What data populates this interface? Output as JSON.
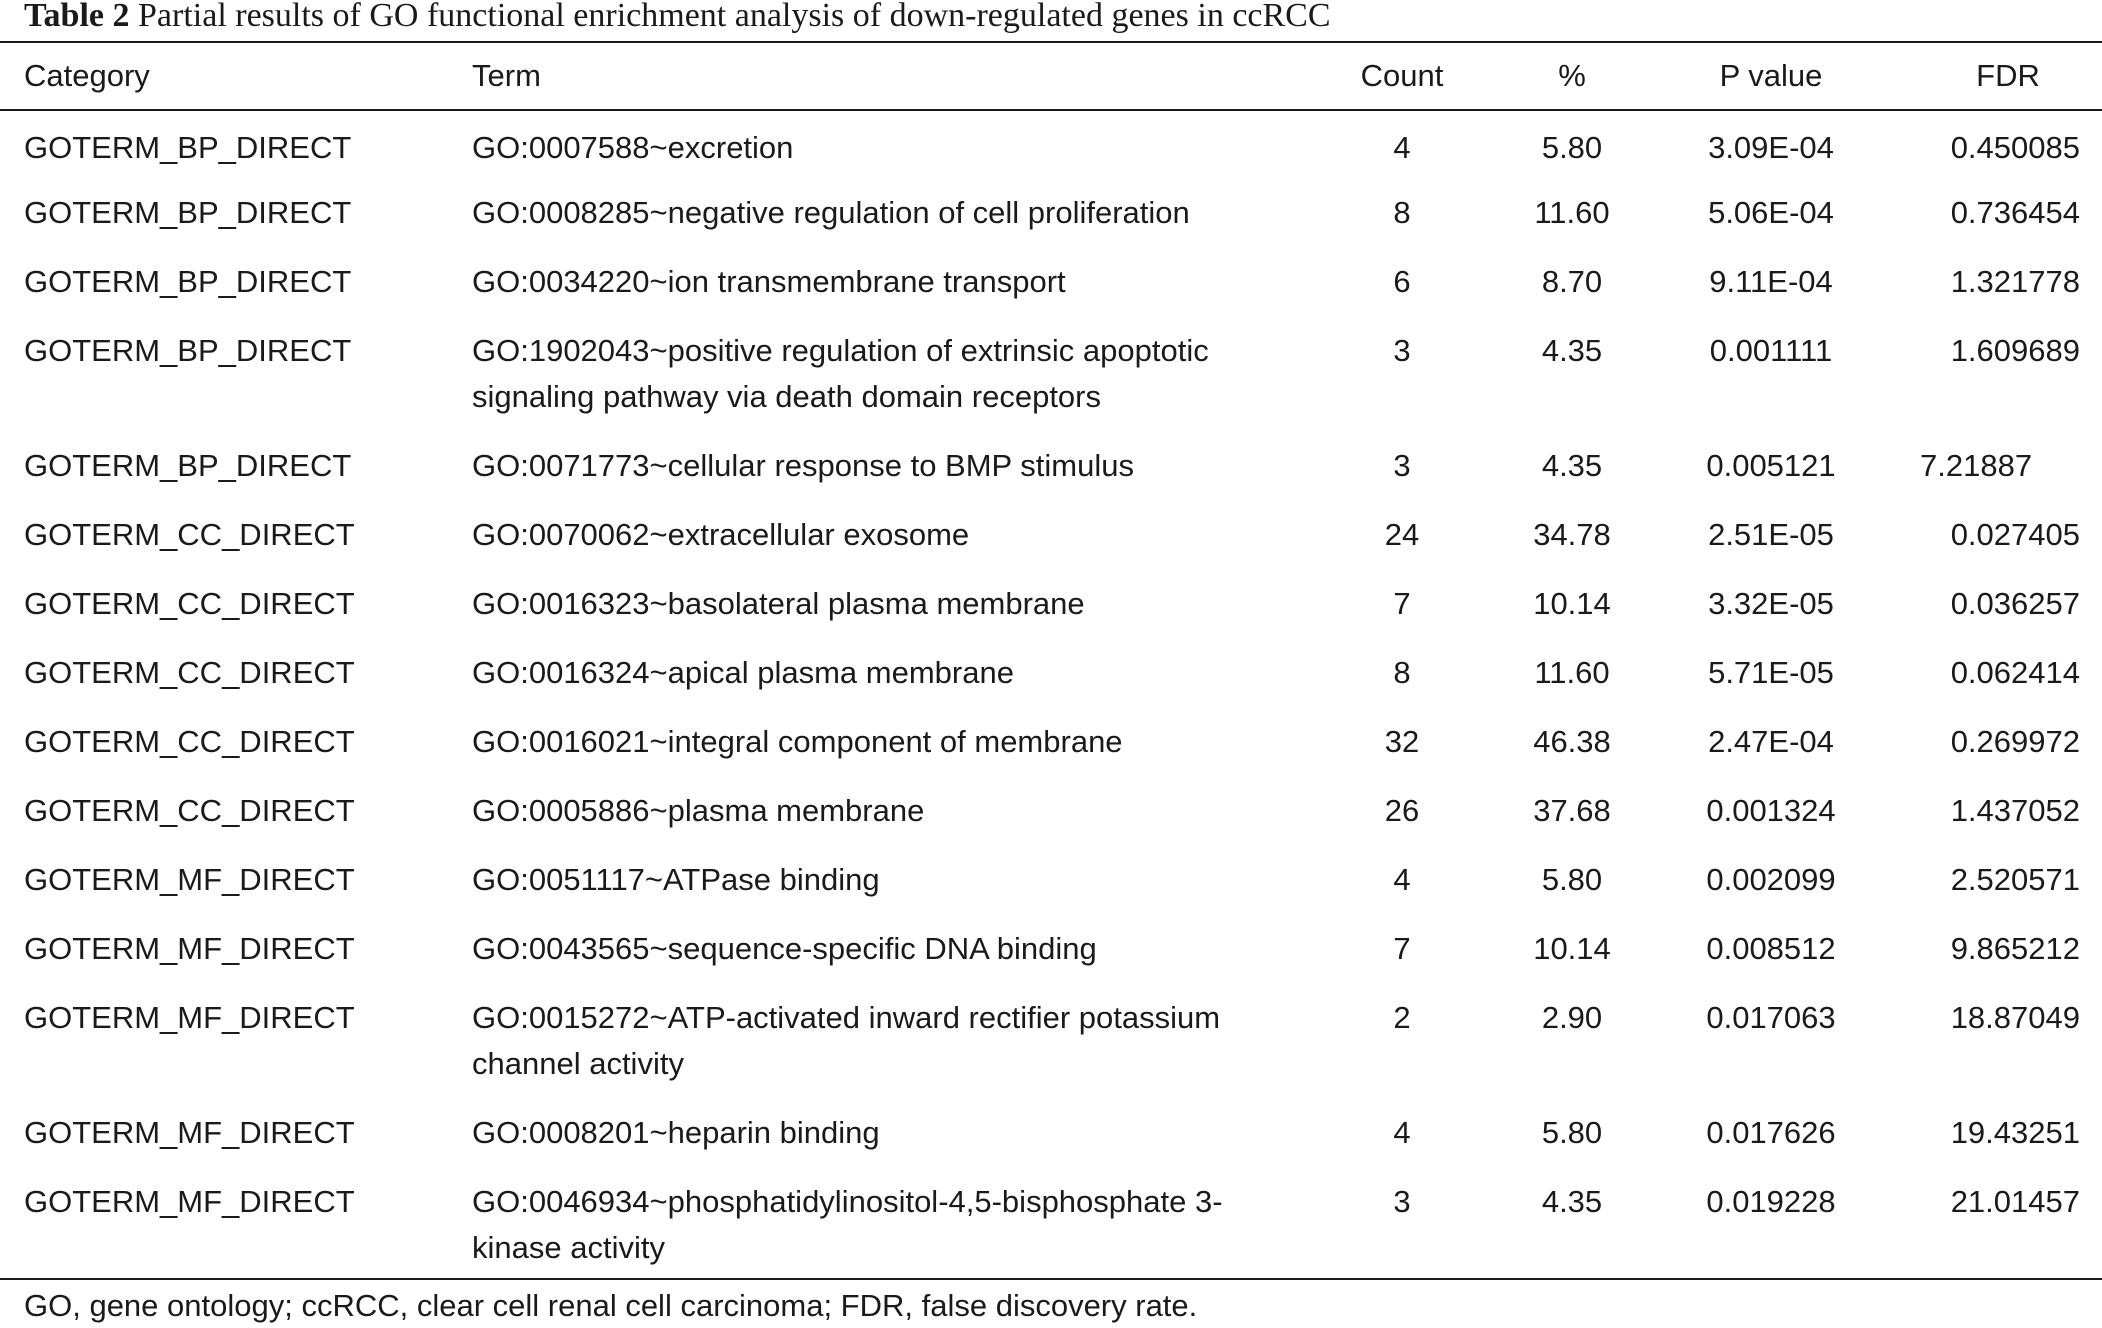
{
  "caption": {
    "label": "Table 2",
    "text": "Partial results of GO functional enrichment analysis of down-regulated genes in ccRCC"
  },
  "headers": {
    "category": "Category",
    "term": "Term",
    "count": "Count",
    "percent": "%",
    "pvalue": "P value",
    "fdr": "FDR"
  },
  "rows": [
    {
      "category": "GOTERM_BP_DIRECT",
      "term": "GO:0007588~excretion",
      "count": "4",
      "percent": "5.80",
      "pvalue": "3.09E-04",
      "fdr": "0.450085"
    },
    {
      "category": "GOTERM_BP_DIRECT",
      "term": "GO:0008285~negative regulation of cell proliferation",
      "count": "8",
      "percent": "11.60",
      "pvalue": "5.06E-04",
      "fdr": "0.736454"
    },
    {
      "category": "GOTERM_BP_DIRECT",
      "term": "GO:0034220~ion transmembrane transport",
      "count": "6",
      "percent": "8.70",
      "pvalue": "9.11E-04",
      "fdr": "1.321778"
    },
    {
      "category": "GOTERM_BP_DIRECT",
      "term": "GO:1902043~positive regulation of extrinsic apoptotic signaling pathway via death domain receptors",
      "count": "3",
      "percent": "4.35",
      "pvalue": "0.001111",
      "fdr": "1.609689"
    },
    {
      "category": "GOTERM_BP_DIRECT",
      "term": "GO:0071773~cellular response to BMP stimulus",
      "count": "3",
      "percent": "4.35",
      "pvalue": "0.005121",
      "fdr": "7.21887"
    },
    {
      "category": "GOTERM_CC_DIRECT",
      "term": "GO:0070062~extracellular exosome",
      "count": "24",
      "percent": "34.78",
      "pvalue": "2.51E-05",
      "fdr": "0.027405"
    },
    {
      "category": "GOTERM_CC_DIRECT",
      "term": "GO:0016323~basolateral plasma membrane",
      "count": "7",
      "percent": "10.14",
      "pvalue": "3.32E-05",
      "fdr": "0.036257"
    },
    {
      "category": "GOTERM_CC_DIRECT",
      "term": "GO:0016324~apical plasma membrane",
      "count": "8",
      "percent": "11.60",
      "pvalue": "5.71E-05",
      "fdr": "0.062414"
    },
    {
      "category": "GOTERM_CC_DIRECT",
      "term": "GO:0016021~integral component of membrane",
      "count": "32",
      "percent": "46.38",
      "pvalue": "2.47E-04",
      "fdr": "0.269972"
    },
    {
      "category": "GOTERM_CC_DIRECT",
      "term": "GO:0005886~plasma membrane",
      "count": "26",
      "percent": "37.68",
      "pvalue": "0.001324",
      "fdr": "1.437052"
    },
    {
      "category": "GOTERM_MF_DIRECT",
      "term": "GO:0051117~ATPase binding",
      "count": "4",
      "percent": "5.80",
      "pvalue": "0.002099",
      "fdr": "2.520571"
    },
    {
      "category": "GOTERM_MF_DIRECT",
      "term": "GO:0043565~sequence-specific DNA binding",
      "count": "7",
      "percent": "10.14",
      "pvalue": "0.008512",
      "fdr": "9.865212"
    },
    {
      "category": "GOTERM_MF_DIRECT",
      "term": "GO:0015272~ATP-activated inward rectifier potassium channel activity",
      "count": "2",
      "percent": "2.90",
      "pvalue": "0.017063",
      "fdr": "18.87049"
    },
    {
      "category": "GOTERM_MF_DIRECT",
      "term": "GO:0008201~heparin binding",
      "count": "4",
      "percent": "5.80",
      "pvalue": "0.017626",
      "fdr": "19.43251"
    },
    {
      "category": "GOTERM_MF_DIRECT",
      "term": "GO:0046934~phosphatidylinositol-4,5-bisphosphate 3-kinase activity",
      "count": "3",
      "percent": "4.35",
      "pvalue": "0.019228",
      "fdr": "21.01457"
    }
  ],
  "footnote": "GO, gene ontology; ccRCC, clear cell renal cell carcinoma; FDR, false discovery rate."
}
